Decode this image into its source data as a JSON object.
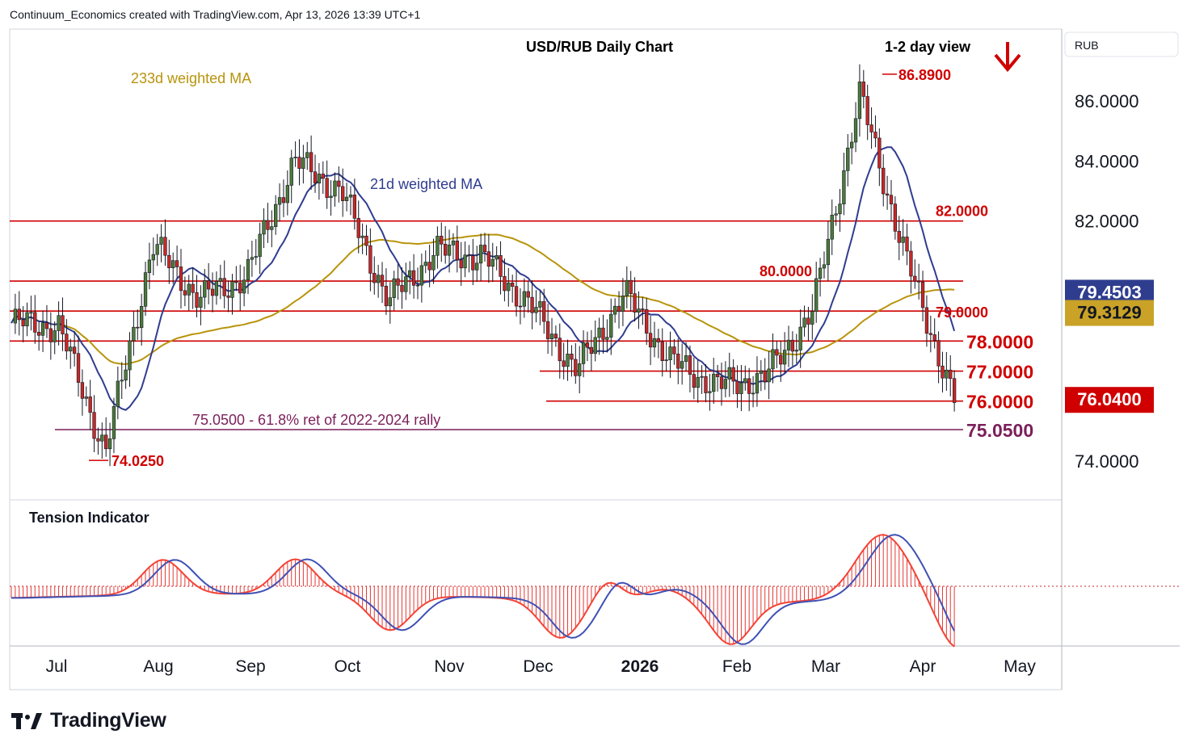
{
  "header": {
    "credit": "Continuum_Economics created with TradingView.com, Apr 13, 2026 13:39 UTC+1"
  },
  "branding": {
    "logo_text": "TradingView"
  },
  "chart_data": {
    "type": "candlestick",
    "title": "USD/RUB Daily Chart",
    "subtitle": "1-2 day view",
    "outlook": "down",
    "currency_label": "RUB",
    "ylim": [
      72.5,
      87.8
    ],
    "y_ticks": [
      "86.0000",
      "84.0000",
      "82.0000",
      "78.0000",
      "77.0000",
      "76.0000",
      "74.0000"
    ],
    "x_ticks": [
      "Jul",
      "Aug",
      "Sep",
      "Oct",
      "Nov",
      "Dec",
      "2026",
      "Feb",
      "Mar",
      "Apr",
      "May"
    ],
    "price_badges": [
      {
        "label": "79.4503",
        "value": 79.4503,
        "series": "21d weighted MA",
        "color": "#2f3d8f"
      },
      {
        "label": "79.3129",
        "value": 79.3129,
        "series": "233d weighted MA",
        "color": "#b8940c"
      },
      {
        "label": "76.0400",
        "value": 76.04,
        "series": "last price",
        "color": "#d00000"
      }
    ],
    "horizontal_levels": [
      {
        "value": 82.0,
        "label": "82.0000",
        "style": "small"
      },
      {
        "value": 80.0,
        "label": "80.0000",
        "style": "small"
      },
      {
        "value": 79.0,
        "label": "79.0000",
        "style": "small"
      },
      {
        "value": 78.0,
        "label": "78.0000",
        "style": "large"
      },
      {
        "value": 77.0,
        "label": "77.0000",
        "style": "large"
      },
      {
        "value": 76.0,
        "label": "76.0000",
        "style": "large"
      }
    ],
    "retracement": {
      "value": 75.05,
      "label": "75.0500",
      "annotation": "75.0500 - 61.8% ret of 2022-2024 rally"
    },
    "extremes": [
      {
        "label": "86.8900",
        "value": 86.89
      },
      {
        "label": "74.0250",
        "value": 74.025
      }
    ],
    "annotations": {
      "ma_long": "233d weighted MA",
      "ma_short": "21d weighted MA"
    },
    "series": [
      {
        "name": "USD/RUB",
        "kind": "close",
        "dates": [
          "Jun 2025",
          "Jul",
          "Jul",
          "Aug",
          "Aug",
          "Sep",
          "Sep",
          "Oct",
          "Oct",
          "Nov",
          "Nov",
          "Dec",
          "Dec",
          "Jan 2026",
          "Jan",
          "Feb",
          "Feb",
          "Mar",
          "Mar",
          "Apr",
          "Apr 13"
        ],
        "values": [
          78.6,
          78.5,
          74.3,
          81.2,
          79.4,
          80.2,
          84.0,
          83.0,
          79.3,
          81.0,
          80.8,
          79.2,
          77.0,
          79.6,
          77.3,
          76.5,
          76.8,
          79.0,
          86.2,
          80.6,
          76.04
        ]
      }
    ],
    "indicator": {
      "name": "Tension Indicator",
      "shape": "oscillator with histogram; peaks late Jul, mid Sep, mid Mar; troughs early Dec, late Jan, Apr"
    },
    "colors": {
      "up": "#4c7a3a",
      "down": "#c62828",
      "level": "#d00000",
      "ma21": "#2f3d8f",
      "ma233": "#b8940c",
      "retracement": "#7b1f5a"
    }
  }
}
